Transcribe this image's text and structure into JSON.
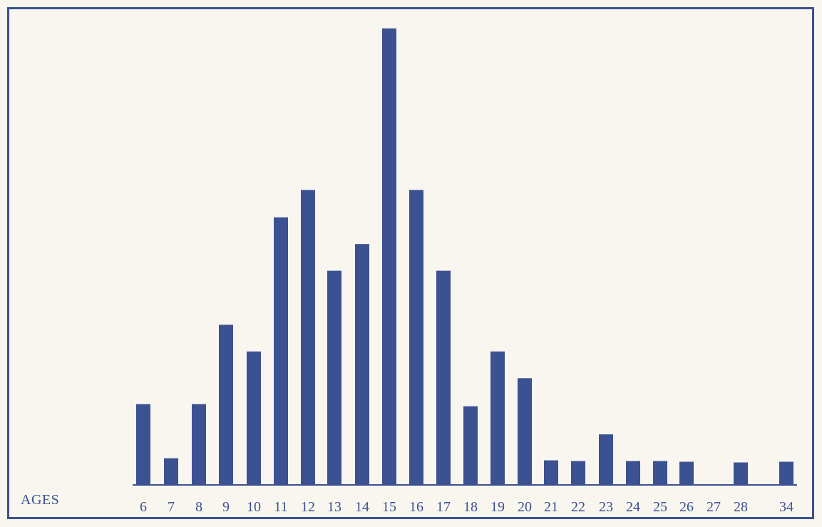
{
  "chart_data": {
    "type": "bar",
    "title": "",
    "xlabel": "AGES",
    "ylabel": "",
    "categories": [
      "6",
      "7",
      "8",
      "9",
      "10",
      "11",
      "12",
      "13",
      "14",
      "15",
      "16",
      "17",
      "18",
      "19",
      "20",
      "21",
      "22",
      "23",
      "24",
      "25",
      "26",
      "27",
      "28",
      "34"
    ],
    "values": [
      115,
      38,
      115,
      228,
      190,
      381,
      420,
      305,
      343,
      650,
      420,
      305,
      112,
      190,
      152,
      35,
      34,
      72,
      34,
      34,
      33,
      0,
      32,
      33
    ],
    "ylim": [
      0,
      660
    ],
    "grid": false,
    "legend": "none",
    "bar_color": "#3b5191"
  }
}
